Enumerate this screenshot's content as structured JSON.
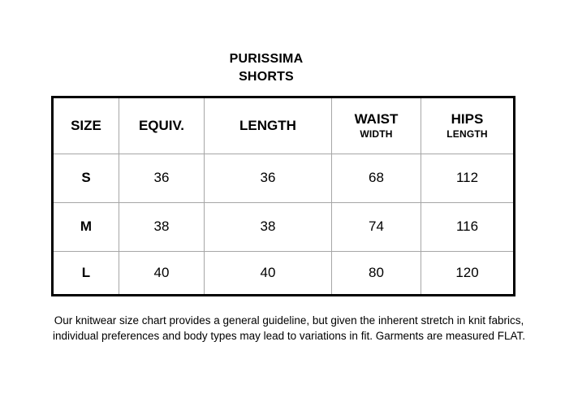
{
  "title": {
    "line1": "PURISSIMA",
    "line2": "SHORTS"
  },
  "table": {
    "columns": [
      {
        "label": "SIZE"
      },
      {
        "label": "EQUIV."
      },
      {
        "label": "LENGTH"
      },
      {
        "label": "WAIST",
        "sublabel": "WIDTH"
      },
      {
        "label": "HIPS",
        "sublabel": "LENGTH"
      }
    ],
    "rows": [
      {
        "size": "S",
        "equiv": "36",
        "length": "36",
        "waist": "68",
        "hips": "112"
      },
      {
        "size": "M",
        "equiv": "38",
        "length": "38",
        "waist": "74",
        "hips": "116"
      },
      {
        "size": "L",
        "equiv": "40",
        "length": "40",
        "waist": "80",
        "hips": "120"
      }
    ]
  },
  "footnote": {
    "line1": "Our knitwear size chart provides a general guideline, but given the inherent stretch in knit fabrics,",
    "line2": "individual preferences and body types may lead to variations in fit. Garments are measured FLAT."
  }
}
